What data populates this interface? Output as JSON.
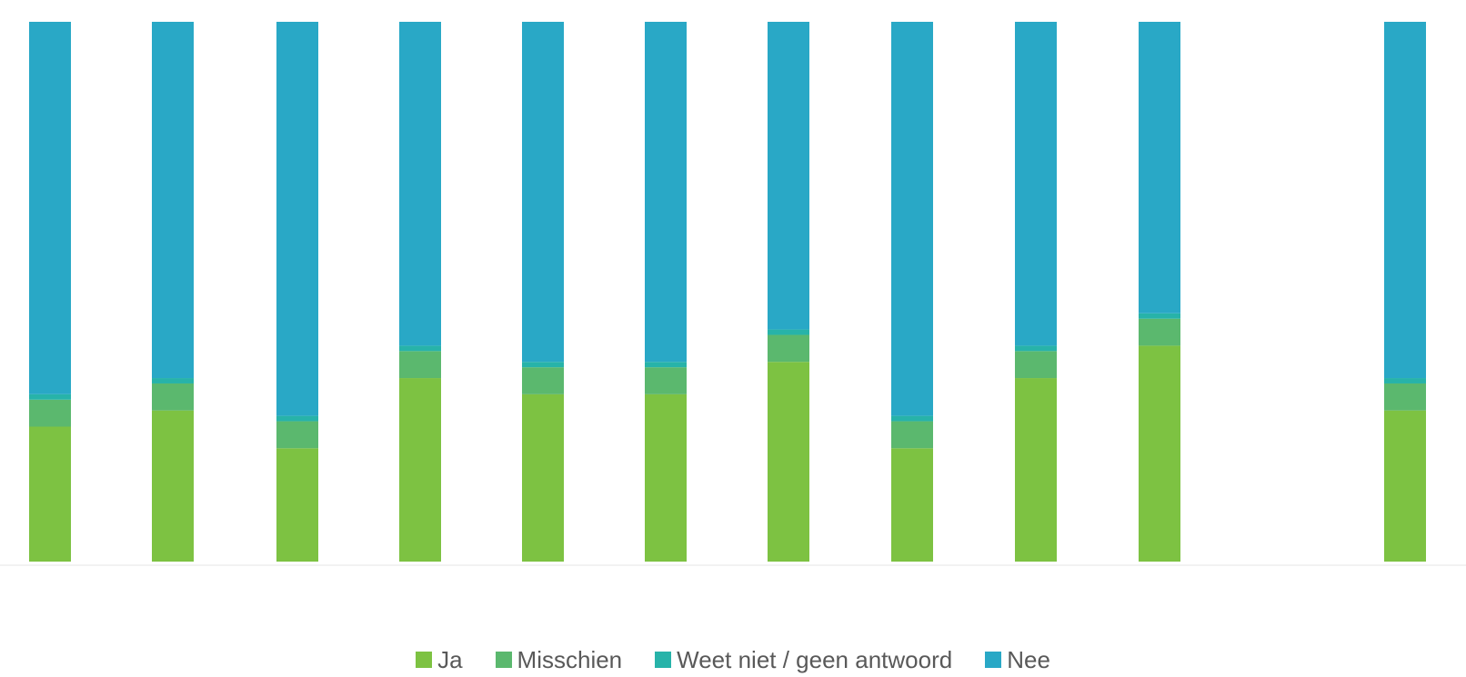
{
  "chart_data": {
    "type": "bar",
    "stacked": true,
    "orientation": "vertical",
    "categories": [
      "",
      "",
      "",
      "",
      "",
      "",
      "",
      "",
      "",
      "",
      ""
    ],
    "series": [
      {
        "name": "Ja",
        "color": "#7DC242",
        "values": [
          25,
          28,
          21,
          34,
          31,
          31,
          37,
          21,
          34,
          40,
          28
        ]
      },
      {
        "name": "Misschien",
        "color": "#5BB86E",
        "values": [
          5,
          5,
          5,
          5,
          5,
          5,
          5,
          5,
          5,
          5,
          5
        ]
      },
      {
        "name": "Weet niet / geen antwoord",
        "color": "#27B3A9",
        "values": [
          1,
          1,
          1,
          1,
          1,
          1,
          1,
          1,
          1,
          1,
          1
        ]
      },
      {
        "name": "Nee",
        "color": "#29A8C6",
        "values": [
          69,
          66,
          73,
          60,
          63,
          63,
          57,
          73,
          60,
          54,
          66
        ]
      }
    ],
    "ylim": [
      0,
      100
    ],
    "grid": false,
    "legend": "bottom"
  }
}
